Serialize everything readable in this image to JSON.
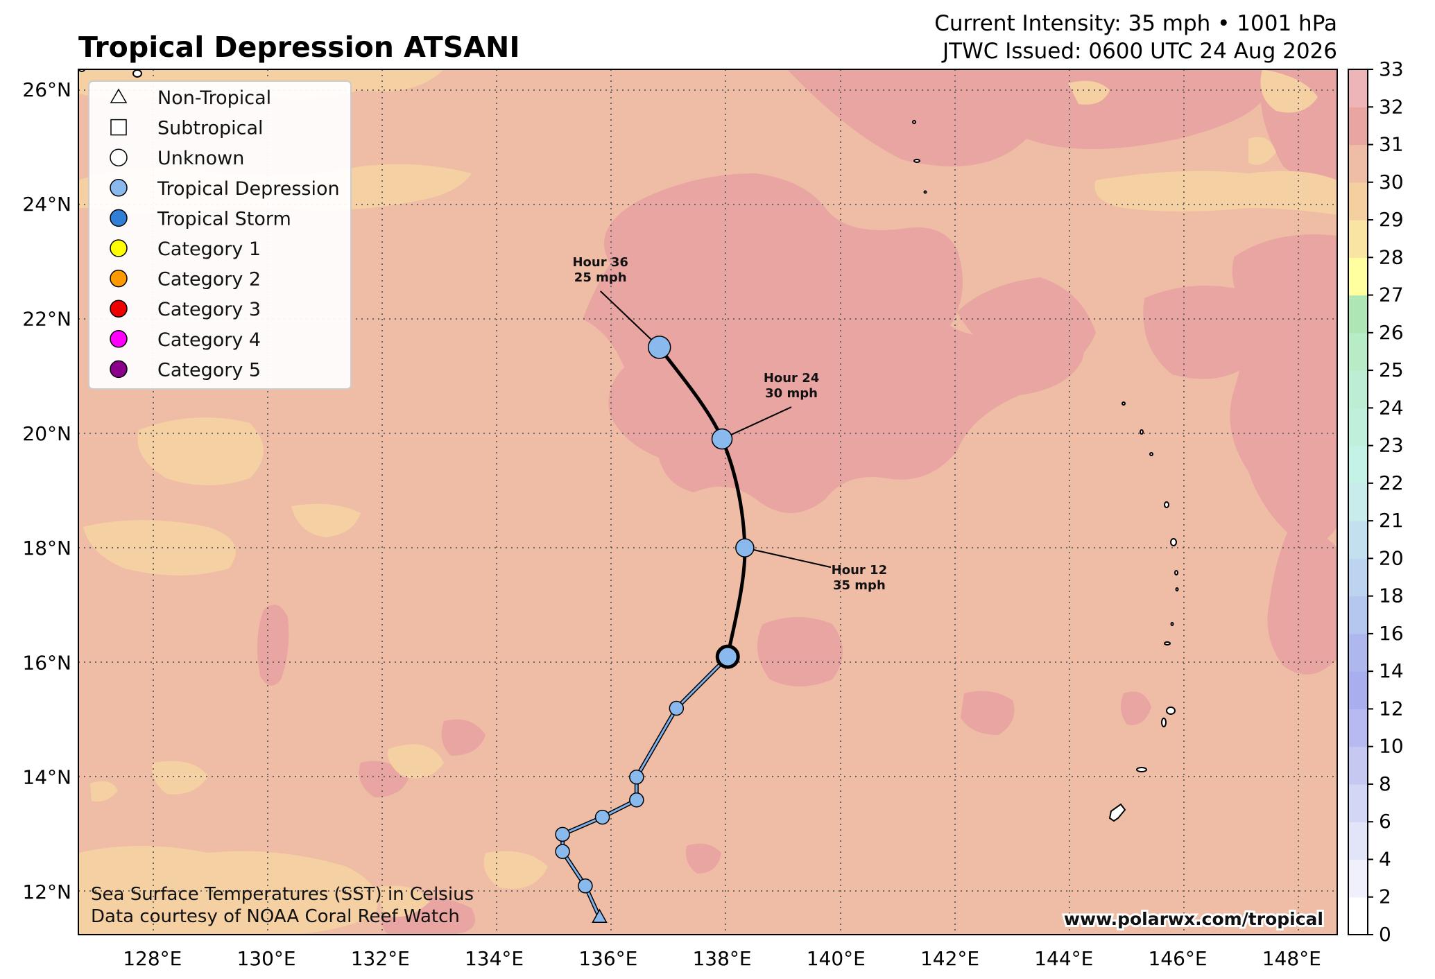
{
  "header": {
    "title": "Tropical Depression ATSANI",
    "intensity": "Current Intensity: 35 mph • 1001 hPa",
    "issued": "JTWC Issued: 0600 UTC 24 Aug 2026"
  },
  "map": {
    "lon_range": [
      126.7,
      148.8
    ],
    "lat_range": [
      11.25,
      26.35
    ],
    "lon_ticks": [
      "128°E",
      "130°E",
      "132°E",
      "134°E",
      "136°E",
      "138°E",
      "140°E",
      "142°E",
      "144°E",
      "146°E",
      "148°E"
    ],
    "lat_ticks": [
      "12°N",
      "14°N",
      "16°N",
      "18°N",
      "20°N",
      "22°N",
      "24°N",
      "26°N"
    ],
    "gridlines": true,
    "colors": {
      "ocean_29_30": "#efbca6",
      "warm_30_31": "#e8a5a2",
      "cool_28_29": "#f4d0a2",
      "track": "#7fb2ea"
    }
  },
  "legend": {
    "position": "top-left",
    "items": [
      {
        "label": "Non-Tropical",
        "marker": "triangle",
        "color": "#ffffff"
      },
      {
        "label": "Subtropical",
        "marker": "square",
        "color": "#ffffff"
      },
      {
        "label": "Unknown",
        "marker": "circle",
        "color": "#ffffff"
      },
      {
        "label": "Tropical Depression",
        "marker": "circle",
        "color": "#89b9ed"
      },
      {
        "label": "Tropical Storm",
        "marker": "circle",
        "color": "#2f7fd6"
      },
      {
        "label": "Category 1",
        "marker": "circle",
        "color": "#ffff00"
      },
      {
        "label": "Category 2",
        "marker": "circle",
        "color": "#ff9900"
      },
      {
        "label": "Category 3",
        "marker": "circle",
        "color": "#ee0000"
      },
      {
        "label": "Category 4",
        "marker": "circle",
        "color": "#ff00ff"
      },
      {
        "label": "Category 5",
        "marker": "circle",
        "color": "#8b008b"
      }
    ]
  },
  "track": {
    "past": [
      {
        "lon": 135.85,
        "lat": 11.55,
        "type": "Non-Tropical"
      },
      {
        "lon": 135.6,
        "lat": 12.1,
        "type": "Tropical Depression"
      },
      {
        "lon": 135.2,
        "lat": 12.7,
        "type": "Tropical Depression"
      },
      {
        "lon": 135.2,
        "lat": 13.0,
        "type": "Tropical Depression"
      },
      {
        "lon": 135.9,
        "lat": 13.3,
        "type": "Tropical Depression"
      },
      {
        "lon": 136.5,
        "lat": 13.6,
        "type": "Tropical Depression"
      },
      {
        "lon": 136.5,
        "lat": 14.0,
        "type": "Tropical Depression"
      },
      {
        "lon": 137.2,
        "lat": 15.2,
        "type": "Tropical Depression"
      }
    ],
    "current": {
      "lon": 138.1,
      "lat": 16.1,
      "type": "Tropical Depression"
    },
    "forecast": [
      {
        "lon": 138.4,
        "lat": 18.0,
        "label": "Hour 12",
        "wind": "35 mph"
      },
      {
        "lon": 138.0,
        "lat": 19.9,
        "label": "Hour 24",
        "wind": "30 mph"
      },
      {
        "lon": 136.9,
        "lat": 21.5,
        "label": "Hour 36",
        "wind": "25 mph"
      }
    ]
  },
  "colorbar": {
    "ticks": [
      "0",
      "2",
      "4",
      "6",
      "8",
      "10",
      "12",
      "14",
      "16",
      "18",
      "20",
      "21",
      "22",
      "23",
      "24",
      "25",
      "26",
      "27",
      "28",
      "29",
      "30",
      "31",
      "32",
      "33"
    ],
    "colors": [
      "#ffffff",
      "#f0f0fc",
      "#e2e4f8",
      "#d4d6f6",
      "#c6c8f2",
      "#b7baf0",
      "#a9aeee",
      "#aeb8ee",
      "#b5c6ef",
      "#bcd4ef",
      "#c3e0ef",
      "#c8ecec",
      "#c4f2e6",
      "#c0f0dc",
      "#bdeed3",
      "#b7ecc6",
      "#aee7b5",
      "#ffff9f",
      "#fae4a4",
      "#f4cf9f",
      "#efbca6",
      "#e8a5a2",
      "#eeb5b8",
      "#f8d2ec"
    ]
  },
  "footer": {
    "caption_line1": "Sea Surface Temperatures (SST) in Celsius",
    "caption_line2": "Data courtesy of NOAA Coral Reef Watch",
    "watermark": "www.polarwx.com/tropical"
  }
}
